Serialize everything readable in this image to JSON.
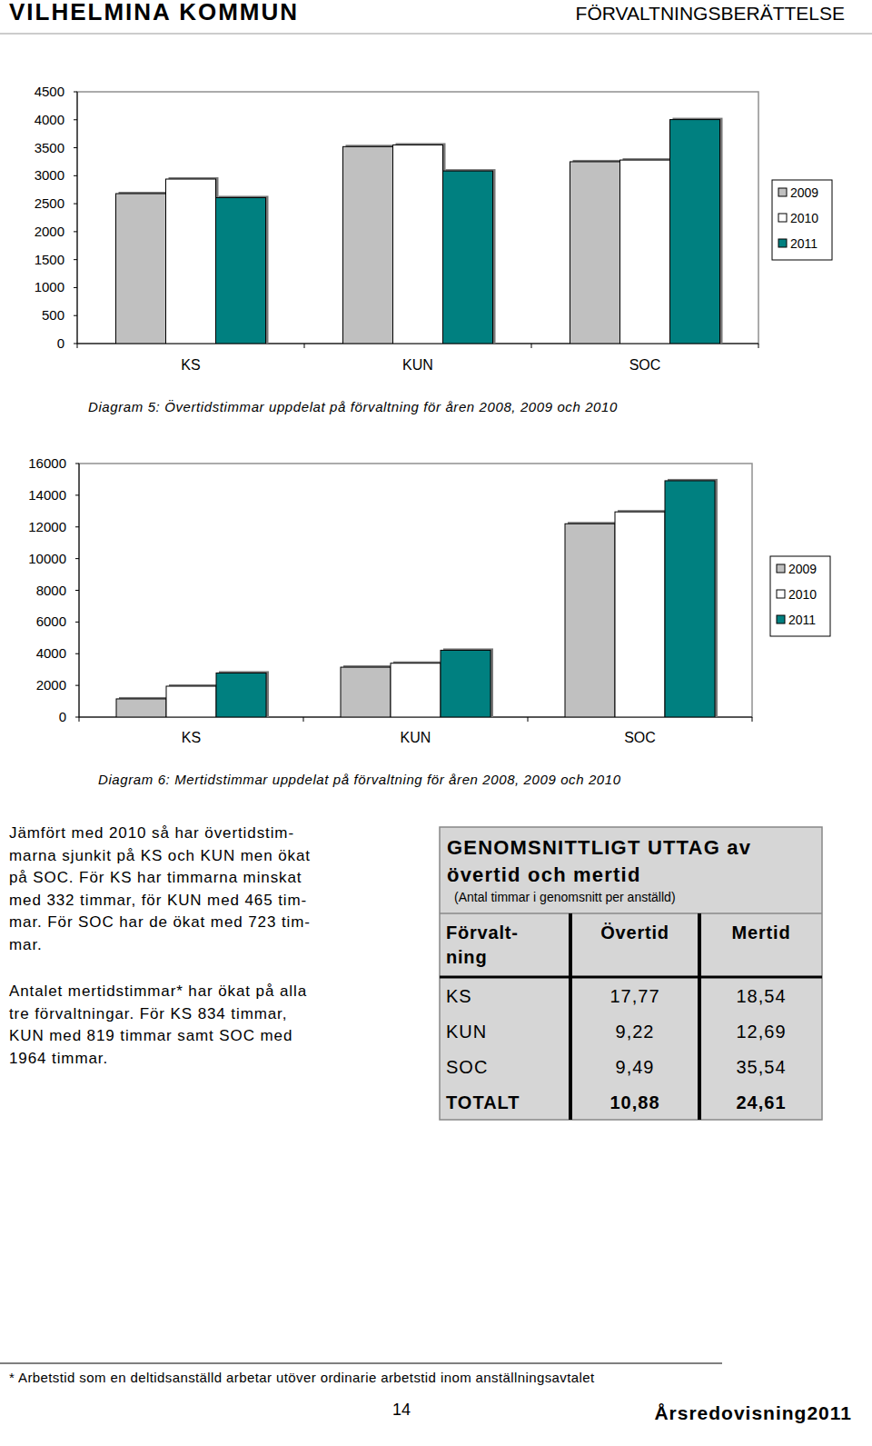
{
  "header": {
    "left": "VILHELMINA KOMMUN",
    "right": "FÖRVALTNINGSBERÄTTELSE"
  },
  "chart_data": [
    {
      "type": "bar",
      "title": "Diagram 5: Övertidstimmar uppdelat på förvaltning för åren 2008, 2009 och 2010",
      "categories": [
        "KS",
        "KUN",
        "SOC"
      ],
      "series": [
        {
          "name": "2009",
          "color": "#c0c0c0",
          "values": [
            2680,
            3520,
            3250
          ]
        },
        {
          "name": "2010",
          "color": "#ffffff",
          "values": [
            2940,
            3550,
            3280
          ]
        },
        {
          "name": "2011",
          "color": "#008080",
          "values": [
            2608,
            3085,
            4003
          ]
        }
      ],
      "ylim": [
        0,
        4500
      ],
      "yticks": [
        0,
        500,
        1000,
        1500,
        2000,
        2500,
        3000,
        3500,
        4000,
        4500
      ],
      "legend": "right",
      "grid": false
    },
    {
      "type": "bar",
      "title": "Diagram 6: Mertidstimmar uppdelat på förvaltning för åren 2008, 2009 och 2010",
      "categories": [
        "KS",
        "KUN",
        "SOC"
      ],
      "series": [
        {
          "name": "2009",
          "color": "#c0c0c0",
          "values": [
            1150,
            3150,
            12200
          ]
        },
        {
          "name": "2010",
          "color": "#ffffff",
          "values": [
            1950,
            3400,
            12950
          ]
        },
        {
          "name": "2011",
          "color": "#008080",
          "values": [
            2784,
            4219,
            14914
          ]
        }
      ],
      "ylim": [
        0,
        16000
      ],
      "yticks": [
        0,
        2000,
        4000,
        6000,
        8000,
        10000,
        12000,
        14000,
        16000
      ],
      "legend": "right",
      "grid": false
    }
  ],
  "paragraphs": [
    [
      "Jämfört med 2010 så har övertidstim-",
      "marna sjunkit på KS och KUN men ökat",
      "på SOC. För KS har timmarna minskat",
      "med 332 timmar, för KUN med 465 tim-",
      "mar. För SOC har de ökat med 723 tim-",
      "mar."
    ],
    [
      "Antalet mertidstimmar* har ökat på alla",
      "tre förvaltningar. För KS 834 timmar,",
      "KUN med 819 timmar samt SOC med",
      "1964 timmar."
    ]
  ],
  "table": {
    "title": [
      "GENOMSNITTLIGT UTTAG av",
      "övertid och mertid"
    ],
    "subtitle": "(Antal timmar i genomsnitt per anställd)",
    "columns": [
      [
        "Förvalt-",
        "ning"
      ],
      [
        "Övertid"
      ],
      [
        "Mertid"
      ]
    ],
    "rows": [
      [
        "KS",
        "17,77",
        "18,54"
      ],
      [
        "KUN",
        "9,22",
        "12,69"
      ],
      [
        "SOC",
        "9,49",
        "35,54"
      ],
      [
        "TOTALT",
        "10,88",
        "24,61"
      ]
    ]
  },
  "footnote": "* Arbetstid som en deltidsanställd arbetar utöver ordinarie arbetstid inom anställningsavtalet",
  "footer": {
    "page": "14",
    "title": "Årsredovisning2011"
  }
}
